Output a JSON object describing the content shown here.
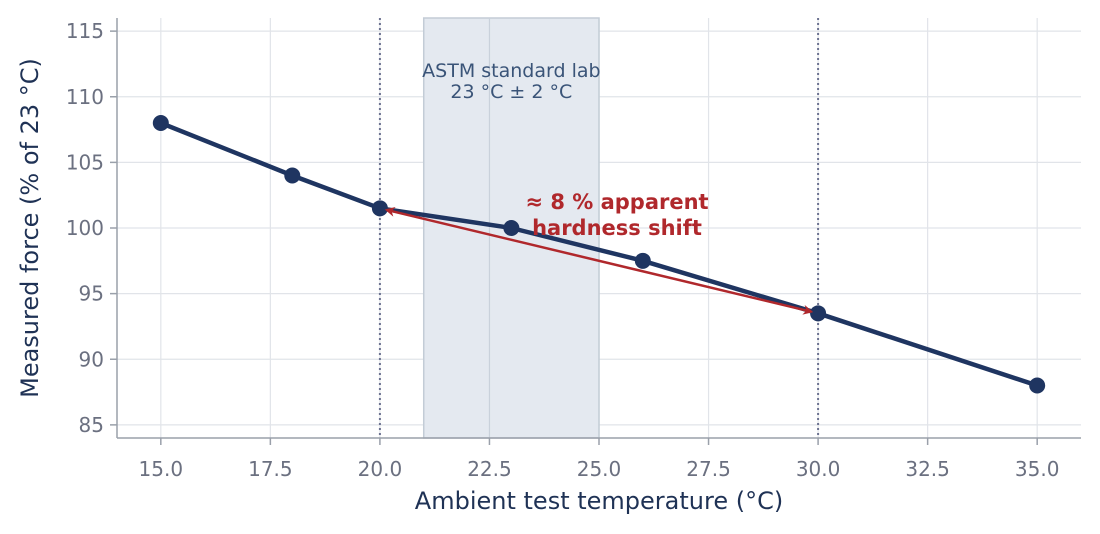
{
  "chart_data": {
    "type": "line",
    "xlabel": "Ambient test temperature (°C)",
    "ylabel": "Measured force (% of 23 °C)",
    "xlim": [
      14,
      36.0
    ],
    "ylim": [
      84.0,
      116.0
    ],
    "x_ticks": [
      "15.0",
      "17.5",
      "20.0",
      "22.5",
      "25.0",
      "27.5",
      "30.0",
      "32.5",
      "35.0"
    ],
    "y_ticks": [
      "85",
      "90",
      "95",
      "100",
      "105",
      "110",
      "115"
    ],
    "grid": true,
    "series": [
      {
        "color": "#1f3561",
        "x": [
          15,
          18,
          20,
          23,
          26,
          30,
          35
        ],
        "y": [
          108,
          104,
          101.5,
          100,
          97.5,
          93.5,
          88
        ]
      }
    ],
    "shaded_band": {
      "x_range": [
        21,
        25
      ],
      "label_line1": "ASTM standard lab",
      "label_line2": "23 °C ± 2 °C",
      "color": "#e4e9f0"
    },
    "vertical_reference_lines": [
      20,
      30
    ],
    "annotation": {
      "line1": "≈ 8 % apparent",
      "line2": "hardness shift",
      "color": "#b0282c",
      "arrow_from": [
        20,
        101.5
      ],
      "arrow_to": [
        30,
        93.5
      ]
    }
  }
}
